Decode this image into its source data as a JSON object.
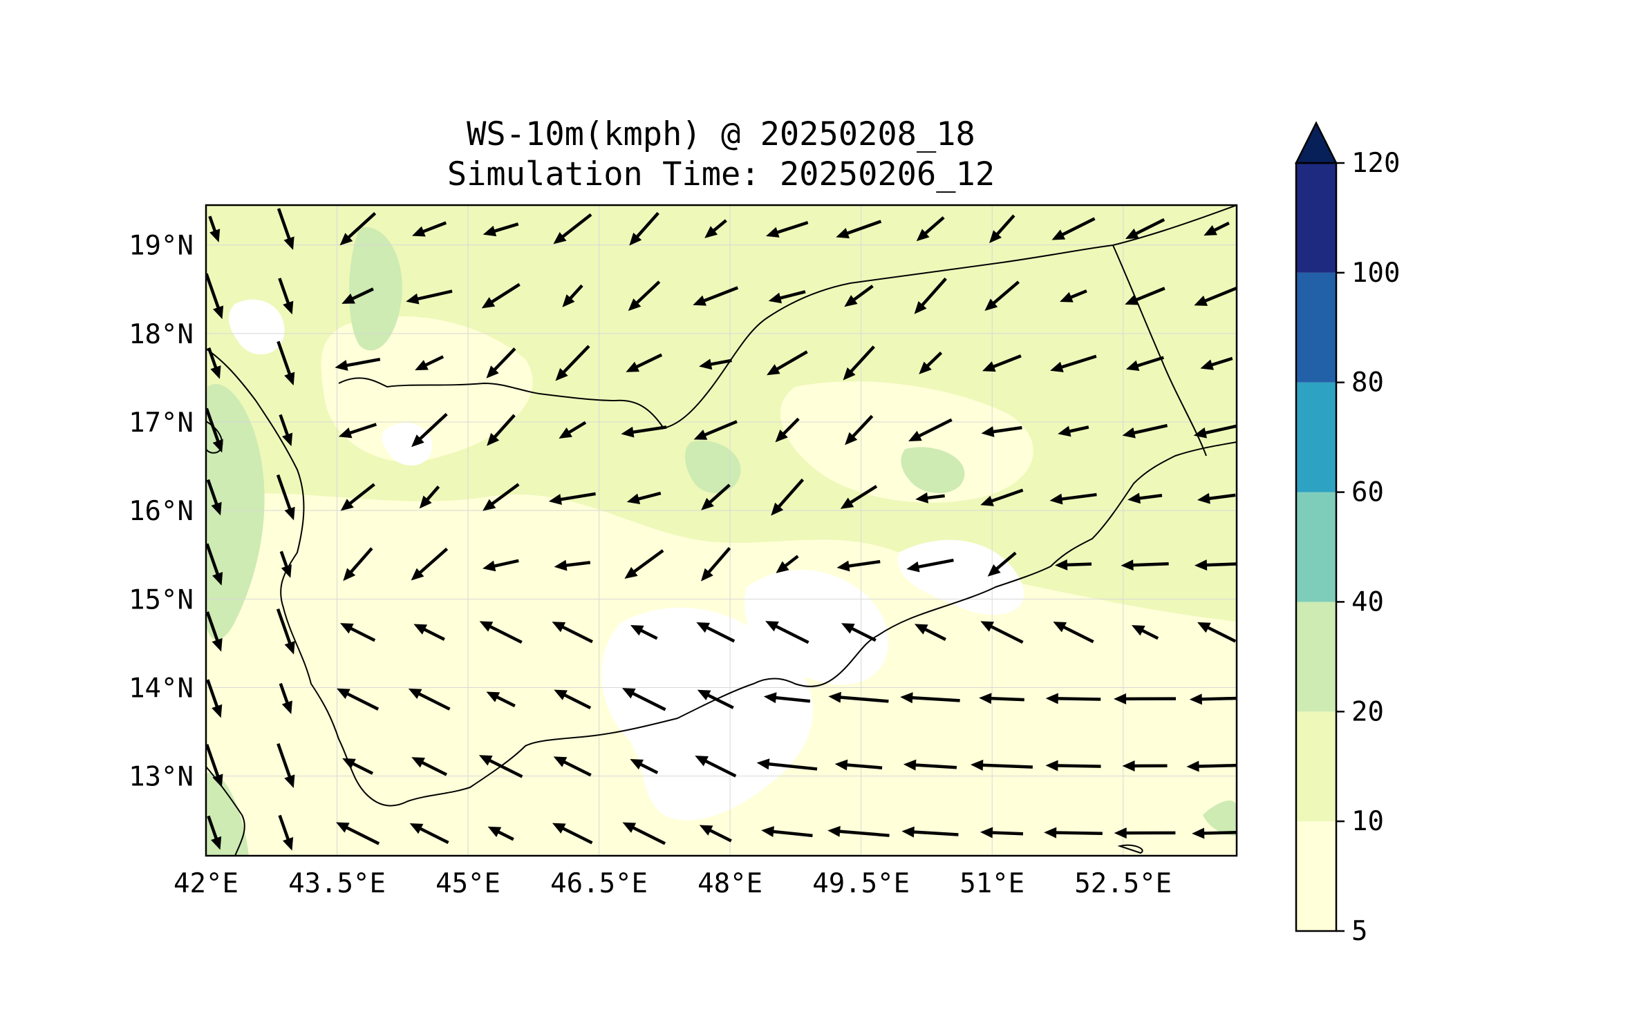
{
  "title": {
    "line1": "WS-10m(kmph) @ 20250208_18",
    "line2": "Simulation Time: 20250206_12"
  },
  "map": {
    "lon_range": [
      42.0,
      53.8
    ],
    "lat_range": [
      12.1,
      19.45
    ],
    "xticks": [
      {
        "value": 42.0,
        "label": "42°E"
      },
      {
        "value": 43.5,
        "label": "43.5°E"
      },
      {
        "value": 45.0,
        "label": "45°E"
      },
      {
        "value": 46.5,
        "label": "46.5°E"
      },
      {
        "value": 48.0,
        "label": "48°E"
      },
      {
        "value": 49.5,
        "label": "49.5°E"
      },
      {
        "value": 51.0,
        "label": "51°E"
      },
      {
        "value": 52.5,
        "label": "52.5°E"
      }
    ],
    "yticks": [
      {
        "value": 19,
        "label": "19°N"
      },
      {
        "value": 18,
        "label": "18°N"
      },
      {
        "value": 17,
        "label": "17°N"
      },
      {
        "value": 16,
        "label": "16°N"
      },
      {
        "value": 15,
        "label": "15°N"
      },
      {
        "value": 14,
        "label": "14°N"
      },
      {
        "value": 13,
        "label": "13°N"
      }
    ],
    "gridlines": true
  },
  "colorbar": {
    "levels": [
      {
        "label": "5",
        "color": "#ffffd9"
      },
      {
        "label": "10",
        "color": "#eef8b9"
      },
      {
        "label": "20",
        "color": "#cdebb3"
      },
      {
        "label": "40",
        "color": "#7ecdbb"
      },
      {
        "label": "60",
        "color": "#2ea2c2"
      },
      {
        "label": "80",
        "color": "#2261a8"
      },
      {
        "label": "100",
        "color": "#1e2a80"
      },
      {
        "label": "120",
        "color": "#08205a"
      }
    ],
    "extend": "max"
  },
  "colors": {
    "calm": "#ffffff",
    "low": "#ffffd9",
    "mid": "#eef8b9",
    "high": "#cdebb3",
    "arrow": "#000000",
    "coast": "#000000"
  }
}
